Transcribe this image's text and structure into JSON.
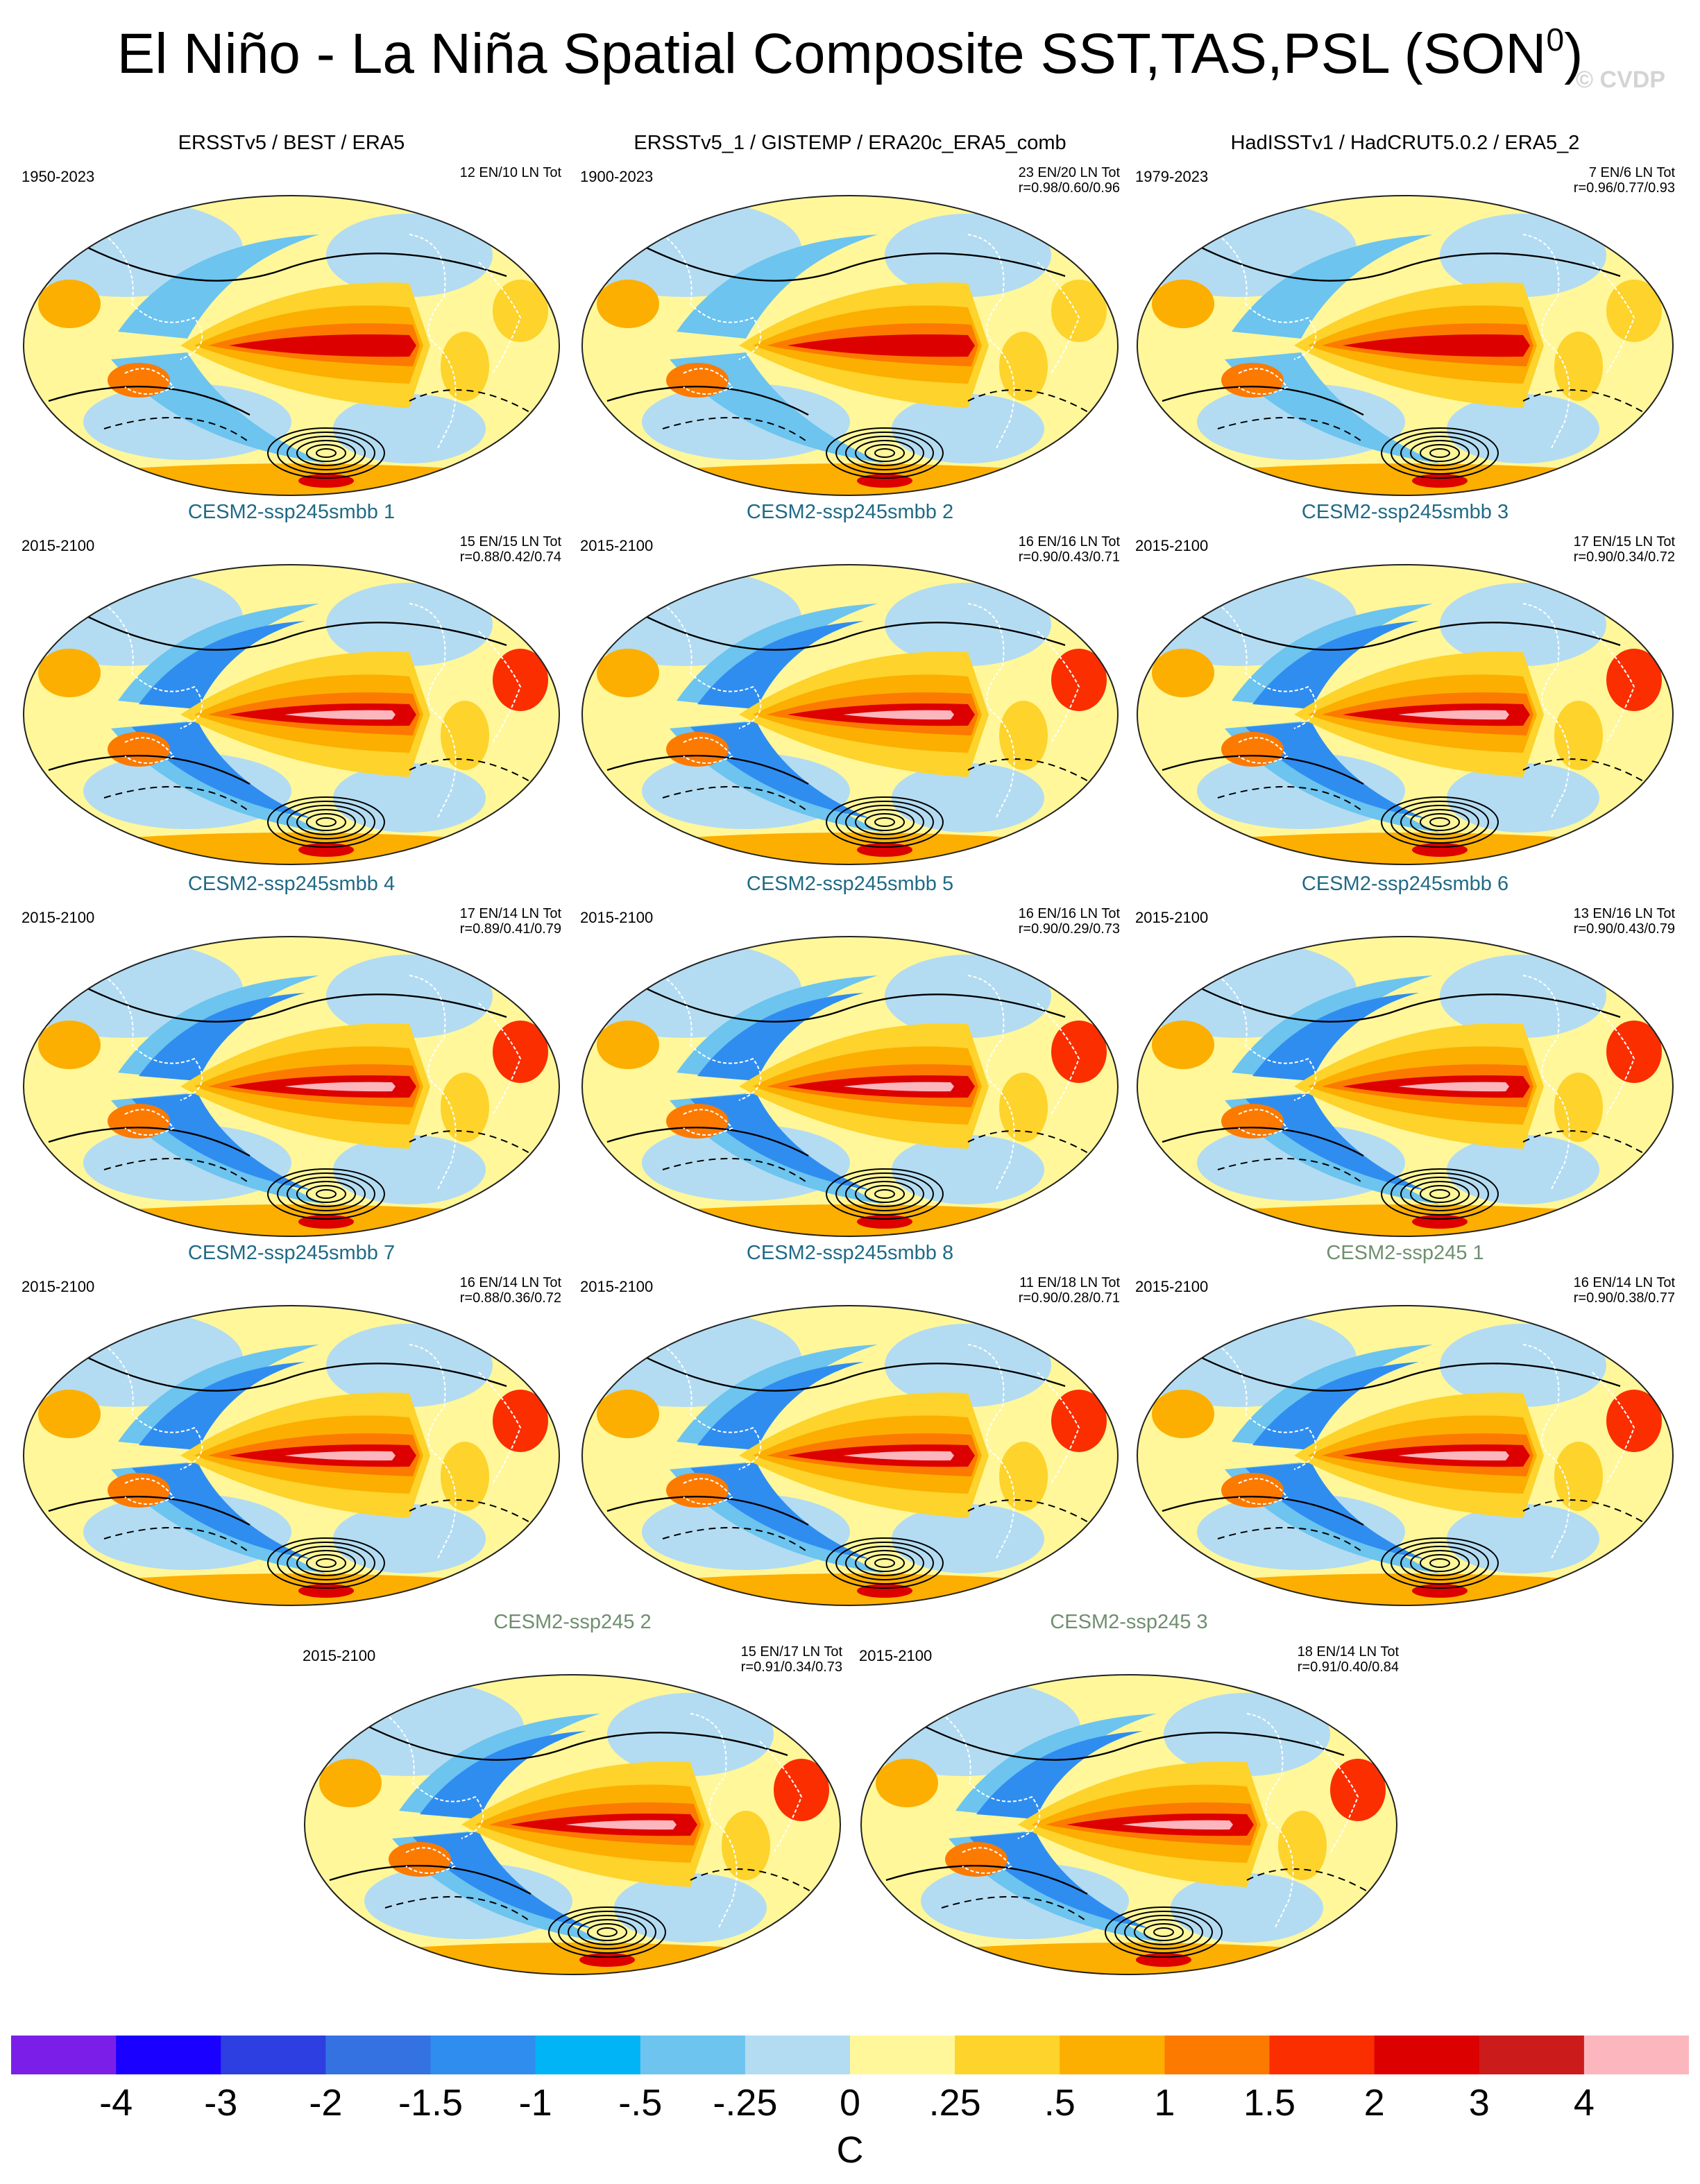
{
  "page": {
    "title_main": "El Niño - La Niña Spatial Composite SST,TAS,PSL (SON",
    "title_sup": "0",
    "title_end": ")",
    "watermark": "© CVDP"
  },
  "panels": [
    {
      "title": "ERSSTv5 / BEST / ERA5",
      "title_color": "#000000",
      "period": "1950-2023",
      "stats_line1": "12 EN/10 LN Tot",
      "stats_line2": ""
    },
    {
      "title": "ERSSTv5_1 / GISTEMP / ERA20c_ERA5_comb",
      "title_color": "#000000",
      "period": "1900-2023",
      "stats_line1": "23 EN/20 LN Tot",
      "stats_line2": "r=0.98/0.60/0.96"
    },
    {
      "title": "HadISSTv1 / HadCRUT5.0.2 / ERA5_2",
      "title_color": "#000000",
      "period": "1979-2023",
      "stats_line1": "7 EN/6 LN Tot",
      "stats_line2": "r=0.96/0.77/0.93"
    },
    {
      "title": "CESM2-ssp245smbb 1",
      "title_color": "#1f6a86",
      "period": "2015-2100",
      "stats_line1": "15 EN/15 LN Tot",
      "stats_line2": "r=0.88/0.42/0.74"
    },
    {
      "title": "CESM2-ssp245smbb 2",
      "title_color": "#1f6a86",
      "period": "2015-2100",
      "stats_line1": "16 EN/16 LN Tot",
      "stats_line2": "r=0.90/0.43/0.71"
    },
    {
      "title": "CESM2-ssp245smbb 3",
      "title_color": "#1f6a86",
      "period": "2015-2100",
      "stats_line1": "17 EN/15 LN Tot",
      "stats_line2": "r=0.90/0.34/0.72"
    },
    {
      "title": "CESM2-ssp245smbb 4",
      "title_color": "#1f6a86",
      "period": "2015-2100",
      "stats_line1": "17 EN/14 LN Tot",
      "stats_line2": "r=0.89/0.41/0.79"
    },
    {
      "title": "CESM2-ssp245smbb 5",
      "title_color": "#1f6a86",
      "period": "2015-2100",
      "stats_line1": "16 EN/16 LN Tot",
      "stats_line2": "r=0.90/0.29/0.73"
    },
    {
      "title": "CESM2-ssp245smbb 6",
      "title_color": "#1f6a86",
      "period": "2015-2100",
      "stats_line1": "13 EN/16 LN Tot",
      "stats_line2": "r=0.90/0.43/0.79"
    },
    {
      "title": "CESM2-ssp245smbb 7",
      "title_color": "#1f6a86",
      "period": "2015-2100",
      "stats_line1": "16 EN/14 LN Tot",
      "stats_line2": "r=0.88/0.36/0.72"
    },
    {
      "title": "CESM2-ssp245smbb 8",
      "title_color": "#1f6a86",
      "period": "2015-2100",
      "stats_line1": "11 EN/18 LN Tot",
      "stats_line2": "r=0.90/0.28/0.71"
    },
    {
      "title": "CESM2-ssp245 1",
      "title_color": "#6f8f6f",
      "period": "2015-2100",
      "stats_line1": "16 EN/14 LN Tot",
      "stats_line2": "r=0.90/0.38/0.77"
    },
    {
      "title": "CESM2-ssp245 2",
      "title_color": "#6f8f6f",
      "period": "2015-2100",
      "stats_line1": "15 EN/17 LN Tot",
      "stats_line2": "r=0.91/0.34/0.73"
    },
    {
      "title": "CESM2-ssp245 3",
      "title_color": "#6f8f6f",
      "period": "2015-2100",
      "stats_line1": "18 EN/14 LN Tot",
      "stats_line2": "r=0.91/0.40/0.84"
    }
  ],
  "colorbar": {
    "units": "C",
    "labels": [
      "-4",
      "-3",
      "-2",
      "-1.5",
      "-1",
      "-.5",
      "-.25",
      "0",
      ".25",
      ".5",
      "1",
      "1.5",
      "2",
      "3",
      "4"
    ],
    "colors": [
      "#7b1fe8",
      "#1a00ff",
      "#2d3fe0",
      "#3472e2",
      "#2f8df0",
      "#00b4f5",
      "#6cc4ef",
      "#b3dcf2",
      "#fff79a",
      "#fdd32c",
      "#fcaf00",
      "#fc7a00",
      "#fb2e00",
      "#dd0000",
      "#cb1b1b",
      "#fcb6bd"
    ]
  }
}
